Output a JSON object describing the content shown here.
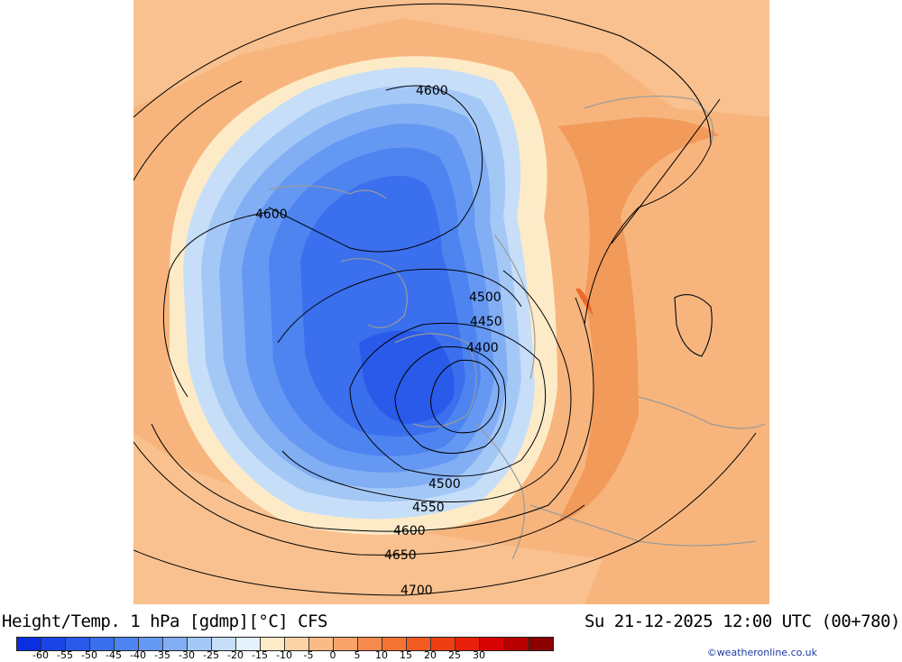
{
  "map": {
    "contours": [
      {
        "label": "4600"
      },
      {
        "label": "4600"
      },
      {
        "label": "4500"
      },
      {
        "label": "4450"
      },
      {
        "label": "4400"
      },
      {
        "label": "4500"
      },
      {
        "label": "4550"
      },
      {
        "label": "4600"
      },
      {
        "label": "4650"
      },
      {
        "label": "4700"
      }
    ]
  },
  "footer": {
    "title": "Height/Temp. 1 hPa [gdmp][°C] CFS",
    "datetime": "Su 21-12-2025 12:00 UTC (00+780)",
    "credit": "©weatheronline.co.uk"
  },
  "legend": {
    "colors": [
      "#0a2ee0",
      "#1a44e6",
      "#2a5aea",
      "#3a6fee",
      "#4d84f0",
      "#6498f2",
      "#82aef4",
      "#a4c8f6",
      "#c6def8",
      "#e4f0fa",
      "#fdebc8",
      "#fcd3a4",
      "#fbbb86",
      "#f9a36a",
      "#f68a4e",
      "#f47234",
      "#f25a22",
      "#ee3f12",
      "#e8200a",
      "#d80404",
      "#b80000",
      "#8a0000"
    ],
    "ticks": [
      "-60",
      "-55",
      "-50",
      "-45",
      "-40",
      "-35",
      "-30",
      "-25",
      "-20",
      "-15",
      "-10",
      "-5",
      "0",
      "5",
      "10",
      "15",
      "20",
      "25",
      "30"
    ]
  }
}
